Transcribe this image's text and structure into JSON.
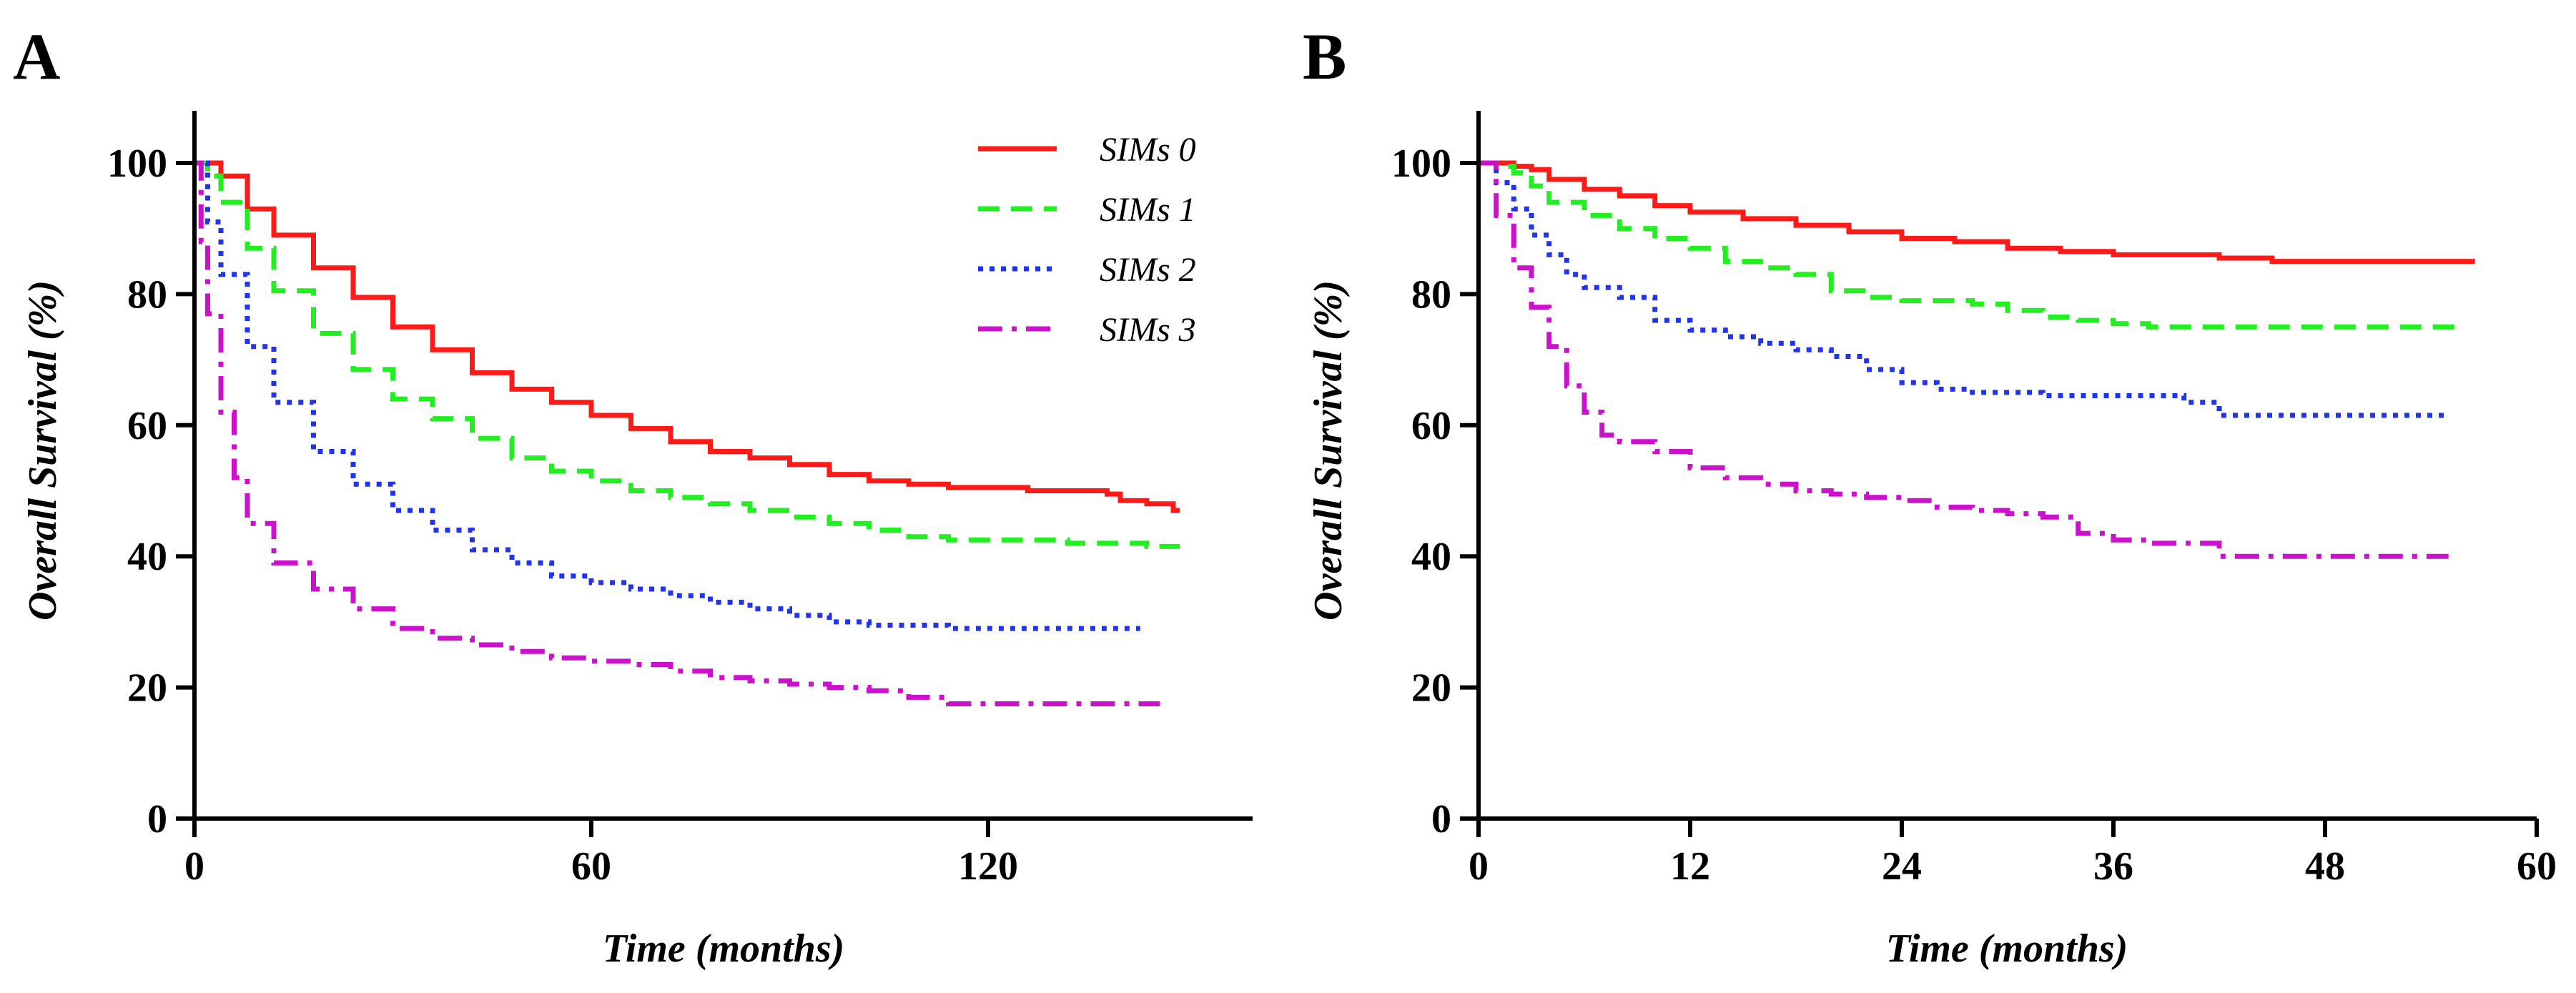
{
  "chart_data": [
    {
      "panel": "A",
      "type": "line",
      "title": "",
      "xlabel": "Time (months)",
      "ylabel": "Overall Survival (%)",
      "xlim": [
        0,
        160
      ],
      "ylim": [
        0,
        107
      ],
      "xticks": [
        0,
        60,
        120
      ],
      "yticks": [
        0,
        20,
        40,
        60,
        80,
        100
      ],
      "legend_position": "top-right",
      "series": [
        {
          "name": "SIMs 0",
          "color": "#ff1a1a",
          "dash": "solid",
          "x": [
            0,
            2,
            4,
            8,
            12,
            18,
            24,
            30,
            36,
            42,
            48,
            54,
            60,
            66,
            72,
            78,
            84,
            90,
            96,
            102,
            108,
            114,
            120,
            126,
            132,
            138,
            140,
            144,
            148,
            149
          ],
          "y": [
            100,
            100,
            98,
            93,
            89,
            84,
            79.5,
            75,
            71.5,
            68,
            65.5,
            63.5,
            61.5,
            59.5,
            57.5,
            56,
            55,
            54,
            52.5,
            51.5,
            51,
            50.5,
            50.5,
            50,
            50,
            49.5,
            48.5,
            48,
            47,
            47
          ]
        },
        {
          "name": "SIMs 1",
          "color": "#22ee22",
          "dash": "dashed",
          "x": [
            0,
            2,
            4,
            8,
            12,
            18,
            24,
            30,
            36,
            42,
            48,
            54,
            60,
            66,
            72,
            78,
            84,
            90,
            96,
            102,
            108,
            114,
            120,
            126,
            132,
            138,
            144,
            149
          ],
          "y": [
            100,
            98,
            94,
            87,
            80.5,
            74,
            68.5,
            64,
            61,
            58,
            55,
            53,
            51.5,
            50,
            49,
            48,
            47,
            46,
            45,
            44,
            43,
            42.5,
            42.5,
            42.5,
            42,
            42,
            41.5,
            41.5
          ]
        },
        {
          "name": "SIMs 2",
          "color": "#2233ee",
          "dash": "dotted",
          "x": [
            0,
            2,
            4,
            8,
            12,
            18,
            24,
            30,
            36,
            42,
            48,
            54,
            60,
            66,
            72,
            78,
            84,
            90,
            96,
            102,
            108,
            114,
            120,
            126,
            132,
            138,
            143
          ],
          "y": [
            100,
            91,
            83,
            72,
            63.5,
            56,
            51,
            47,
            44,
            41,
            39,
            37,
            36,
            35,
            34,
            33,
            32,
            31,
            30,
            29.5,
            29.5,
            29,
            29,
            29,
            29,
            29,
            29
          ]
        },
        {
          "name": "SIMs 3",
          "color": "#cc11cc",
          "dash": "dashdot",
          "x": [
            0,
            1,
            2,
            4,
            6,
            8,
            12,
            18,
            24,
            30,
            36,
            42,
            48,
            54,
            60,
            66,
            72,
            78,
            84,
            90,
            96,
            102,
            108,
            114,
            120,
            126,
            132,
            138,
            146
          ],
          "y": [
            100,
            88,
            77,
            62,
            52,
            45,
            39,
            35,
            32,
            29,
            27.5,
            26.5,
            25.5,
            24.5,
            24,
            23.5,
            22.5,
            21.5,
            21,
            20.5,
            20,
            19.5,
            18.5,
            17.5,
            17.5,
            17.5,
            17.5,
            17.5,
            17.5
          ]
        }
      ]
    },
    {
      "panel": "B",
      "type": "line",
      "title": "",
      "xlabel": "Time (months)",
      "ylabel": "Overall Survival (%)",
      "xlim": [
        0,
        60
      ],
      "ylim": [
        0,
        107
      ],
      "xticks": [
        0,
        12,
        24,
        36,
        48,
        60
      ],
      "yticks": [
        0,
        20,
        40,
        60,
        80,
        100
      ],
      "series": [
        {
          "name": "SIMs 0",
          "color": "#ff1a1a",
          "dash": "solid",
          "x": [
            0,
            2,
            3,
            4,
            6,
            8,
            10,
            12,
            15,
            18,
            21,
            24,
            27,
            30,
            33,
            36,
            39,
            42,
            45,
            48,
            51,
            54,
            56.5
          ],
          "y": [
            100,
            99.5,
            99,
            97.5,
            96,
            95,
            93.5,
            92.5,
            91.5,
            90.5,
            89.5,
            88.5,
            88,
            87,
            86.5,
            86,
            86,
            85.5,
            85,
            85,
            85,
            85,
            85
          ]
        },
        {
          "name": "SIMs 1",
          "color": "#22ee22",
          "dash": "dashed",
          "x": [
            0,
            1,
            2,
            3,
            4,
            6,
            8,
            10,
            12,
            14,
            16,
            18,
            20,
            22,
            24,
            26,
            28,
            30,
            32,
            34,
            36,
            38,
            40,
            44,
            48,
            52,
            55.5
          ],
          "y": [
            100,
            99.5,
            98.5,
            96.5,
            94,
            92,
            90,
            88.5,
            87,
            85,
            84,
            83,
            80.5,
            79.5,
            79,
            79,
            78.5,
            77.5,
            76.5,
            76,
            75.5,
            75,
            75,
            75,
            75,
            75,
            75
          ]
        },
        {
          "name": "SIMs 2",
          "color": "#2233ee",
          "dash": "dotted",
          "x": [
            0,
            1,
            2,
            3,
            4,
            5,
            6,
            8,
            10,
            12,
            14,
            16,
            18,
            20,
            22,
            24,
            26,
            28,
            30,
            32,
            34,
            36,
            38,
            40,
            42,
            46,
            50,
            55
          ],
          "y": [
            100,
            97,
            93,
            89,
            86,
            83,
            81,
            79.5,
            76,
            74.5,
            73.5,
            72.5,
            71.5,
            70.5,
            68.5,
            66.5,
            65.5,
            65,
            65,
            64.5,
            64.5,
            64.5,
            64.5,
            63.5,
            61.5,
            61.5,
            61.5,
            61.5
          ]
        },
        {
          "name": "SIMs 3",
          "color": "#cc11cc",
          "dash": "dashdot",
          "x": [
            0,
            1,
            2,
            3,
            4,
            5,
            6,
            7,
            8,
            10,
            12,
            14,
            16,
            18,
            20,
            22,
            24,
            26,
            28,
            30,
            32,
            34,
            36,
            38,
            40,
            42,
            46,
            50,
            55
          ],
          "y": [
            100,
            92,
            84,
            78,
            72,
            66,
            62,
            58.5,
            57.5,
            56,
            53.5,
            52,
            51,
            50,
            49.5,
            49,
            48.5,
            47.5,
            47,
            46.5,
            46,
            43.5,
            42.5,
            42,
            42,
            40,
            40,
            40,
            40
          ]
        }
      ]
    }
  ],
  "figure": {
    "panel_labels": [
      "A",
      "B"
    ],
    "legend_entries": [
      "SIMs 0",
      "SIMs 1",
      "SIMs 2",
      "SIMs 3"
    ]
  }
}
